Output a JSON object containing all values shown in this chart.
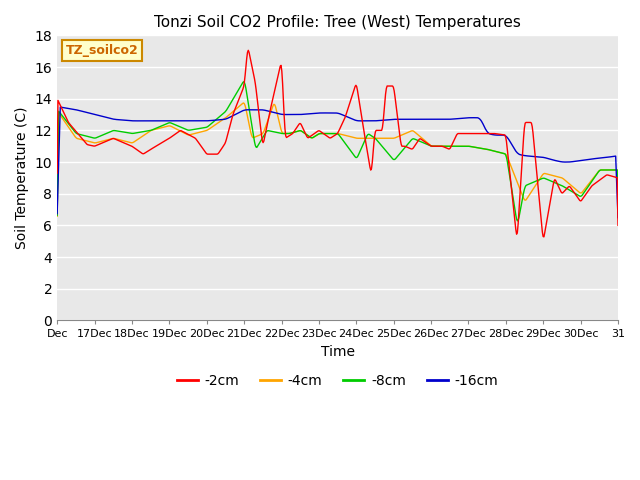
{
  "title": "Tonzi Soil CO2 Profile: Tree (West) Temperatures",
  "xlabel": "Time",
  "ylabel": "Soil Temperature (C)",
  "ylim": [
    0,
    18
  ],
  "yticks": [
    0,
    2,
    4,
    6,
    8,
    10,
    12,
    14,
    16,
    18
  ],
  "legend_label": "TZ_soilco2",
  "series_labels": [
    "-2cm",
    "-4cm",
    "-8cm",
    "-16cm"
  ],
  "series_colors": [
    "#ff0000",
    "#ffa500",
    "#00cc00",
    "#0000cc"
  ],
  "line_width": 1.0,
  "x_tick_labels": [
    "Dec",
    "17Dec",
    "18Dec",
    "19Dec",
    "20Dec",
    "21Dec",
    "22Dec",
    "23Dec",
    "24Dec",
    "25Dec",
    "26Dec",
    "27Dec",
    "28Dec",
    "29Dec",
    "30Dec",
    "31"
  ],
  "fig_bg_color": "#ffffff",
  "plot_bg_color": "#e8e8e8",
  "grid_color": "#ffffff",
  "label_box_facecolor": "#ffffcc",
  "label_box_edgecolor": "#cc8800",
  "label_text_color": "#cc6600"
}
